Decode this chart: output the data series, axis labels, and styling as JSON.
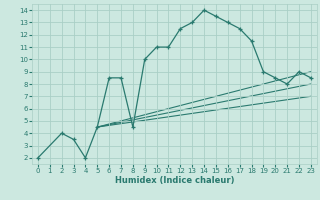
{
  "bg_color": "#cce8e0",
  "line_color": "#2a7a6f",
  "grid_color": "#aacfc6",
  "xlabel": "Humidex (Indice chaleur)",
  "xlim": [
    -0.5,
    23.5
  ],
  "ylim": [
    1.5,
    14.5
  ],
  "xticks": [
    0,
    1,
    2,
    3,
    4,
    5,
    6,
    7,
    8,
    9,
    10,
    11,
    12,
    13,
    14,
    15,
    16,
    17,
    18,
    19,
    20,
    21,
    22,
    23
  ],
  "yticks": [
    2,
    3,
    4,
    5,
    6,
    7,
    8,
    9,
    10,
    11,
    12,
    13,
    14
  ],
  "main_x": [
    0,
    2,
    3,
    4,
    5,
    6,
    7,
    8,
    9,
    10,
    11,
    12,
    13,
    14,
    15,
    16,
    17,
    18,
    19,
    20,
    21,
    22,
    23
  ],
  "main_y": [
    2,
    4,
    3.5,
    2.0,
    4.5,
    8.5,
    8.5,
    4.5,
    10,
    11,
    11,
    12.5,
    13,
    14,
    13.5,
    13,
    12.5,
    11.5,
    9,
    8.5,
    8,
    9,
    8.5
  ],
  "line2_x": [
    5,
    23
  ],
  "line2_y": [
    4.5,
    9.0
  ],
  "line3_x": [
    5,
    23
  ],
  "line3_y": [
    4.5,
    8.0
  ],
  "line4_x": [
    5,
    23
  ],
  "line4_y": [
    4.5,
    7.0
  ]
}
